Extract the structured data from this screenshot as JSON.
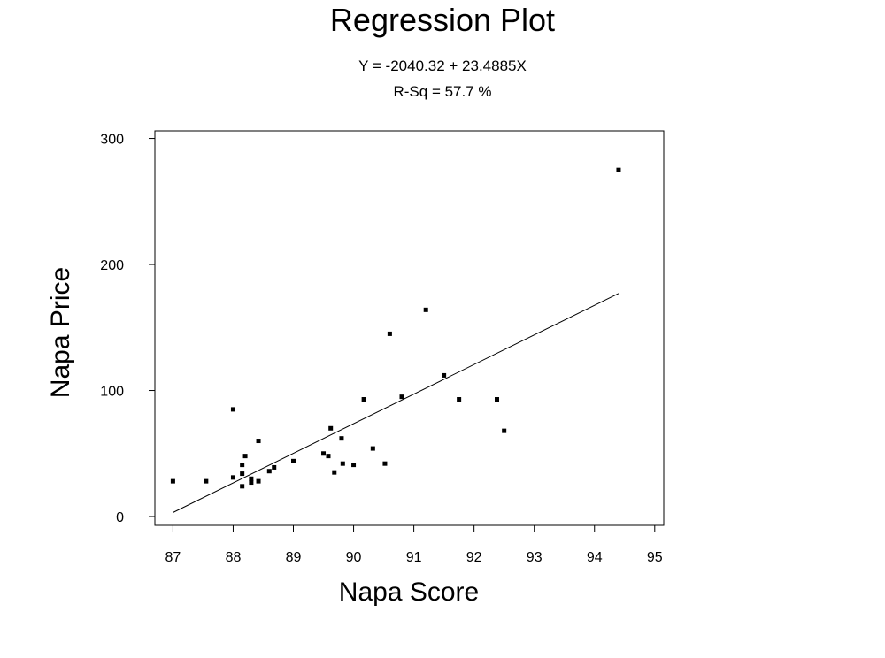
{
  "chart_data": {
    "type": "scatter",
    "title": "Regression Plot",
    "subtitle": [
      "Y = -2040.32 + 23.4885X",
      "R-Sq = 57.7 %"
    ],
    "xlabel": "Napa Score",
    "ylabel": "Napa Price",
    "xlim": [
      86.7,
      95.15
    ],
    "ylim": [
      -7,
      306
    ],
    "x_ticks": [
      "87",
      "88",
      "89",
      "90",
      "91",
      "92",
      "93",
      "94",
      "95"
    ],
    "y_ticks": [
      "0",
      "100",
      "200",
      "300"
    ],
    "grid": false,
    "legend": "none",
    "points": [
      {
        "x": 87.0,
        "y": 28
      },
      {
        "x": 87.55,
        "y": 28
      },
      {
        "x": 88.0,
        "y": 85
      },
      {
        "x": 88.0,
        "y": 31
      },
      {
        "x": 88.15,
        "y": 41
      },
      {
        "x": 88.15,
        "y": 34
      },
      {
        "x": 88.15,
        "y": 24
      },
      {
        "x": 88.2,
        "y": 48
      },
      {
        "x": 88.3,
        "y": 30
      },
      {
        "x": 88.3,
        "y": 27
      },
      {
        "x": 88.42,
        "y": 60
      },
      {
        "x": 88.42,
        "y": 28
      },
      {
        "x": 88.6,
        "y": 36
      },
      {
        "x": 88.68,
        "y": 39
      },
      {
        "x": 89.0,
        "y": 44
      },
      {
        "x": 89.5,
        "y": 50
      },
      {
        "x": 89.58,
        "y": 48
      },
      {
        "x": 89.62,
        "y": 70
      },
      {
        "x": 89.68,
        "y": 35
      },
      {
        "x": 89.8,
        "y": 62
      },
      {
        "x": 89.82,
        "y": 42
      },
      {
        "x": 90.0,
        "y": 41
      },
      {
        "x": 90.17,
        "y": 93
      },
      {
        "x": 90.32,
        "y": 54
      },
      {
        "x": 90.52,
        "y": 42
      },
      {
        "x": 90.6,
        "y": 145
      },
      {
        "x": 90.8,
        "y": 95
      },
      {
        "x": 91.2,
        "y": 164
      },
      {
        "x": 91.5,
        "y": 112
      },
      {
        "x": 91.75,
        "y": 93
      },
      {
        "x": 92.38,
        "y": 93
      },
      {
        "x": 92.5,
        "y": 68
      },
      {
        "x": 94.4,
        "y": 275
      }
    ],
    "fit_line": {
      "intercept": -2040.32,
      "slope": 23.4885,
      "x_range": [
        87.0,
        94.4
      ]
    }
  }
}
